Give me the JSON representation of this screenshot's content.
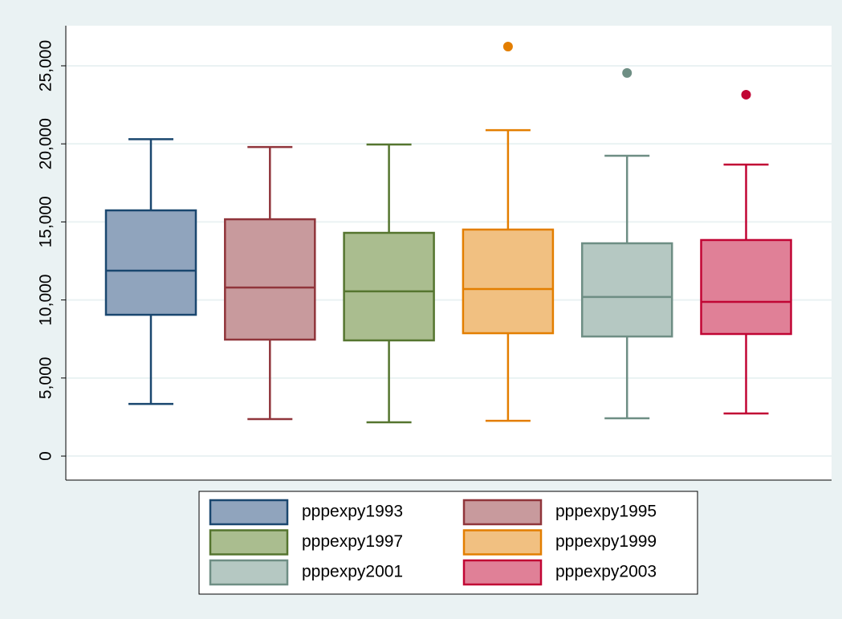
{
  "chart_data": {
    "type": "box",
    "ylim": [
      -1540,
      27570
    ],
    "yticks": [
      0,
      {
        "value": 5000,
        "label": "5,000"
      },
      {
        "value": 10000,
        "label": "10,000"
      },
      {
        "value": 15000,
        "label": "15,000"
      },
      {
        "value": 20000,
        "label": "20,000"
      },
      {
        "value": 25000,
        "label": "25,000"
      }
    ],
    "grid": true,
    "legend": "bottom",
    "series": [
      {
        "name": "pppexpy1993",
        "color": "#1a476f",
        "fill": "#90a4bd",
        "min": 3340,
        "q1": 9050,
        "median": 11880,
        "q3": 15740,
        "max": 20300,
        "outliers": []
      },
      {
        "name": "pppexpy1995",
        "color": "#90353b",
        "fill": "#c89a9d",
        "min": 2370,
        "q1": 7460,
        "median": 10800,
        "q3": 15170,
        "max": 19800,
        "outliers": []
      },
      {
        "name": "pppexpy1997",
        "color": "#55752f",
        "fill": "#aabd8f",
        "min": 2160,
        "q1": 7410,
        "median": 10550,
        "q3": 14300,
        "max": 19960,
        "outliers": []
      },
      {
        "name": "pppexpy1999",
        "color": "#e37e00",
        "fill": "#f1c081",
        "min": 2260,
        "q1": 7870,
        "median": 10700,
        "q3": 14510,
        "max": 20880,
        "outliers": [
          26230
        ]
      },
      {
        "name": "pppexpy2001",
        "color": "#6e8e84",
        "fill": "#b5c8c2",
        "min": 2420,
        "q1": 7660,
        "median": 10190,
        "q3": 13630,
        "max": 19240,
        "outliers": [
          24540
        ]
      },
      {
        "name": "pppexpy2003",
        "color": "#c10534",
        "fill": "#e08097",
        "min": 2730,
        "q1": 7820,
        "median": 9880,
        "q3": 13840,
        "max": 18670,
        "outliers": [
          23150
        ]
      }
    ]
  }
}
